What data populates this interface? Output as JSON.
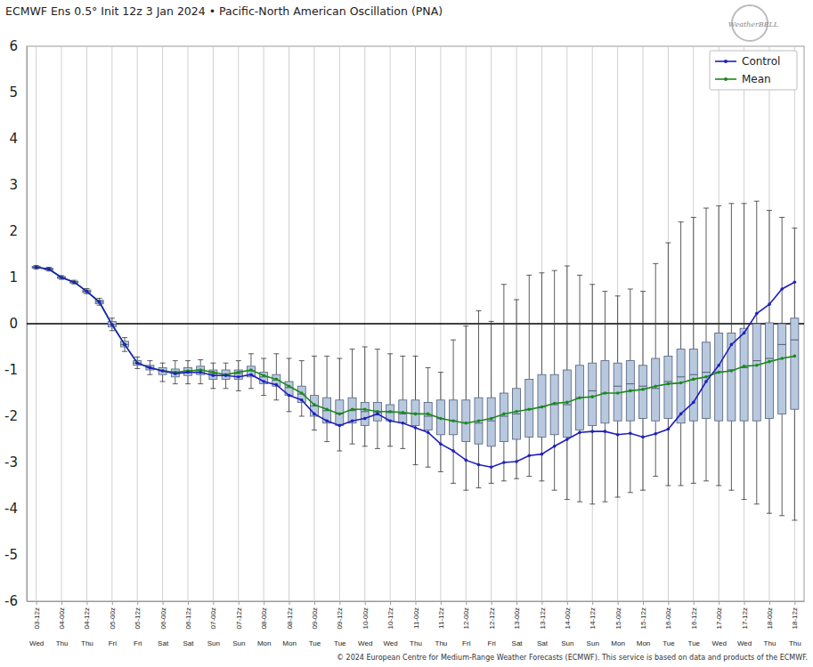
{
  "chart_data": {
    "type": "box",
    "title": "ECMWF Ens 0.5° Init 12z 3 Jan 2024 • Pacific-North American Oscillation (PNA)",
    "footer": "© 2024 European Centre for Medium-Range Weather Forecasts (ECMWF). This service is based on data and products of the ECMWF.",
    "logo": "WeatherBELL",
    "categories": [
      "03-12z",
      null,
      "04-00z",
      null,
      "04-12z",
      null,
      "05-00z",
      null,
      "05-12z",
      null,
      "06-00z",
      null,
      "06-12z",
      null,
      "07-00z",
      null,
      "07-12z",
      null,
      "08-00z",
      null,
      "08-12z",
      null,
      "09-00z",
      null,
      "09-12z",
      null,
      "10-00z",
      null,
      "10-12z",
      null,
      "11-00z",
      null,
      "11-12z",
      null,
      "12-00z",
      null,
      "12-12z",
      null,
      "13-00z",
      null,
      "13-12z",
      null,
      "14-00z",
      null,
      "14-12z",
      null,
      "15-00z",
      null,
      "15-12z",
      null,
      "16-00z",
      null,
      "16-12z",
      null,
      "17-00z",
      null,
      "17-12z",
      null,
      "18-00z",
      null,
      "18-12z"
    ],
    "weekdays": [
      "Wed",
      null,
      "Thu",
      null,
      "Thu",
      null,
      "Fri",
      null,
      "Fri",
      null,
      "Sat",
      null,
      "Sat",
      null,
      "Sun",
      null,
      "Sun",
      null,
      "Mon",
      null,
      "Mon",
      null,
      "Tue",
      null,
      "Tue",
      null,
      "Wed",
      null,
      "Wed",
      null,
      "Thu",
      null,
      "Thu",
      null,
      "Fri",
      null,
      "Fri",
      null,
      "Sat",
      null,
      "Sat",
      null,
      "Sun",
      null,
      "Sun",
      null,
      "Mon",
      null,
      "Mon",
      null,
      "Tue",
      null,
      "Tue",
      null,
      "Wed",
      null,
      "Wed",
      null,
      "Thu",
      null,
      "Thu"
    ],
    "boxes": {
      "min": [
        1.18,
        1.14,
        0.96,
        0.86,
        0.65,
        0.4,
        -0.15,
        -0.6,
        -0.97,
        -1.1,
        -1.25,
        -1.3,
        -1.3,
        -1.3,
        -1.4,
        -1.4,
        -1.45,
        -1.4,
        -1.55,
        -1.65,
        -1.9,
        -2.0,
        -2.3,
        -2.55,
        -2.75,
        -2.6,
        -2.65,
        -2.7,
        -2.65,
        -2.7,
        -3.05,
        -3.1,
        -3.2,
        -3.45,
        -3.6,
        -3.55,
        -3.45,
        -3.4,
        -3.35,
        -3.3,
        -3.4,
        -3.6,
        -3.8,
        -3.85,
        -3.9,
        -3.85,
        -3.75,
        -3.65,
        -3.6,
        -3.3,
        -3.5,
        -3.5,
        -3.45,
        -3.4,
        -3.5,
        -3.6,
        -3.8,
        -3.9,
        -4.1,
        -4.15,
        -4.25
      ],
      "q1": [
        1.2,
        1.16,
        0.98,
        0.88,
        0.67,
        0.43,
        -0.07,
        -0.5,
        -0.9,
        -1.0,
        -1.1,
        -1.15,
        -1.12,
        -1.1,
        -1.2,
        -1.2,
        -1.2,
        -1.15,
        -1.3,
        -1.35,
        -1.55,
        -1.7,
        -2.0,
        -2.15,
        -2.2,
        -2.15,
        -2.2,
        -2.1,
        -2.1,
        -2.15,
        -2.2,
        -2.3,
        -2.4,
        -2.4,
        -2.55,
        -2.6,
        -2.65,
        -2.55,
        -2.5,
        -2.45,
        -2.45,
        -2.4,
        -2.45,
        -2.3,
        -2.2,
        -2.15,
        -2.1,
        -2.1,
        -2.05,
        -2.1,
        -2.05,
        -2.15,
        -2.1,
        -2.05,
        -2.1,
        -2.1,
        -2.1,
        -2.1,
        -2.05,
        -1.95,
        -1.85
      ],
      "median": [
        1.22,
        1.18,
        1.0,
        0.9,
        0.7,
        0.47,
        -0.02,
        -0.45,
        -0.85,
        -0.95,
        -1.02,
        -1.05,
        -1.02,
        -1.0,
        -1.08,
        -1.1,
        -1.08,
        -1.02,
        -1.15,
        -1.22,
        -1.38,
        -1.52,
        -1.78,
        -1.88,
        -1.95,
        -1.88,
        -1.9,
        -1.92,
        -1.92,
        -1.95,
        -1.95,
        -2.0,
        -2.05,
        -2.1,
        -2.15,
        -2.15,
        -2.1,
        -2.0,
        -1.95,
        -1.85,
        -1.8,
        -1.75,
        -1.75,
        -1.6,
        -1.45,
        -1.5,
        -1.35,
        -1.3,
        -1.35,
        -1.4,
        -1.25,
        -1.15,
        -1.1,
        -1.05,
        -1.05,
        -1.0,
        -0.95,
        -0.8,
        -0.75,
        -0.45,
        -0.35
      ],
      "q3": [
        1.24,
        1.2,
        1.02,
        0.92,
        0.73,
        0.51,
        0.05,
        -0.38,
        -0.8,
        -0.9,
        -0.95,
        -0.98,
        -0.95,
        -0.92,
        -1.0,
        -1.0,
        -1.0,
        -0.92,
        -1.05,
        -1.1,
        -1.25,
        -1.35,
        -1.55,
        -1.6,
        -1.65,
        -1.6,
        -1.7,
        -1.7,
        -1.75,
        -1.65,
        -1.65,
        -1.7,
        -1.65,
        -1.65,
        -1.65,
        -1.6,
        -1.6,
        -1.5,
        -1.4,
        -1.2,
        -1.1,
        -1.1,
        -1.0,
        -0.9,
        -0.85,
        -0.8,
        -0.85,
        -0.8,
        -0.9,
        -0.75,
        -0.7,
        -0.55,
        -0.55,
        -0.4,
        -0.2,
        -0.2,
        -0.1,
        0.0,
        0.02,
        0.0,
        0.12
      ],
      "max": [
        1.26,
        1.22,
        1.04,
        0.94,
        0.76,
        0.55,
        0.12,
        -0.3,
        -0.72,
        -0.8,
        -0.85,
        -0.8,
        -0.8,
        -0.78,
        -0.85,
        -0.85,
        -0.8,
        -0.65,
        -0.75,
        -0.65,
        -0.75,
        -0.8,
        -0.7,
        -0.7,
        -0.75,
        -0.55,
        -0.5,
        -0.55,
        -0.65,
        -0.7,
        -0.7,
        -0.95,
        -1.05,
        -0.35,
        -0.05,
        0.28,
        0.05,
        0.85,
        0.52,
        1.05,
        1.1,
        1.15,
        1.25,
        1.05,
        0.85,
        0.7,
        0.6,
        0.75,
        0.7,
        1.3,
        1.75,
        2.2,
        2.3,
        2.5,
        2.55,
        2.6,
        2.6,
        2.65,
        2.45,
        2.3,
        2.07
      ]
    },
    "color": "#b8c9df",
    "series": [
      {
        "name": "Control",
        "color": "#1f1fbf",
        "marker": "circle",
        "values": [
          1.22,
          1.18,
          1.0,
          0.9,
          0.7,
          0.47,
          -0.02,
          -0.45,
          -0.85,
          -0.95,
          -1.02,
          -1.08,
          -1.05,
          -1.05,
          -1.12,
          -1.12,
          -1.15,
          -1.1,
          -1.25,
          -1.32,
          -1.55,
          -1.65,
          -1.95,
          -2.1,
          -2.2,
          -2.1,
          -2.05,
          -1.95,
          -2.1,
          -2.15,
          -2.25,
          -2.35,
          -2.6,
          -2.75,
          -2.95,
          -3.05,
          -3.1,
          -3.0,
          -2.98,
          -2.85,
          -2.82,
          -2.65,
          -2.5,
          -2.35,
          -2.33,
          -2.33,
          -2.4,
          -2.37,
          -2.45,
          -2.38,
          -2.28,
          -1.95,
          -1.7,
          -1.25,
          -0.9,
          -0.45,
          -0.2,
          0.22,
          0.42,
          0.75,
          0.9
        ]
      },
      {
        "name": "Mean",
        "color": "#1a8a1a",
        "marker": "circle",
        "values": [
          1.22,
          1.18,
          1.0,
          0.9,
          0.7,
          0.47,
          -0.02,
          -0.45,
          -0.85,
          -0.95,
          -1.02,
          -1.05,
          -1.02,
          -1.0,
          -1.05,
          -1.1,
          -1.05,
          -1.0,
          -1.12,
          -1.2,
          -1.35,
          -1.5,
          -1.75,
          -1.85,
          -1.95,
          -1.85,
          -1.85,
          -1.9,
          -1.9,
          -1.92,
          -1.95,
          -1.95,
          -2.05,
          -2.1,
          -2.15,
          -2.1,
          -2.05,
          -1.95,
          -1.9,
          -1.85,
          -1.8,
          -1.72,
          -1.7,
          -1.6,
          -1.58,
          -1.5,
          -1.5,
          -1.45,
          -1.42,
          -1.35,
          -1.3,
          -1.28,
          -1.2,
          -1.15,
          -1.05,
          -1.02,
          -0.92,
          -0.9,
          -0.82,
          -0.75,
          -0.7
        ]
      }
    ],
    "hline": 0,
    "ylim": [
      -6,
      6
    ],
    "yticks": [
      -6,
      -5,
      -4,
      -3,
      -2,
      -1,
      0,
      1,
      2,
      3,
      4,
      5,
      6
    ],
    "grid": "x",
    "legend": "top-right"
  }
}
